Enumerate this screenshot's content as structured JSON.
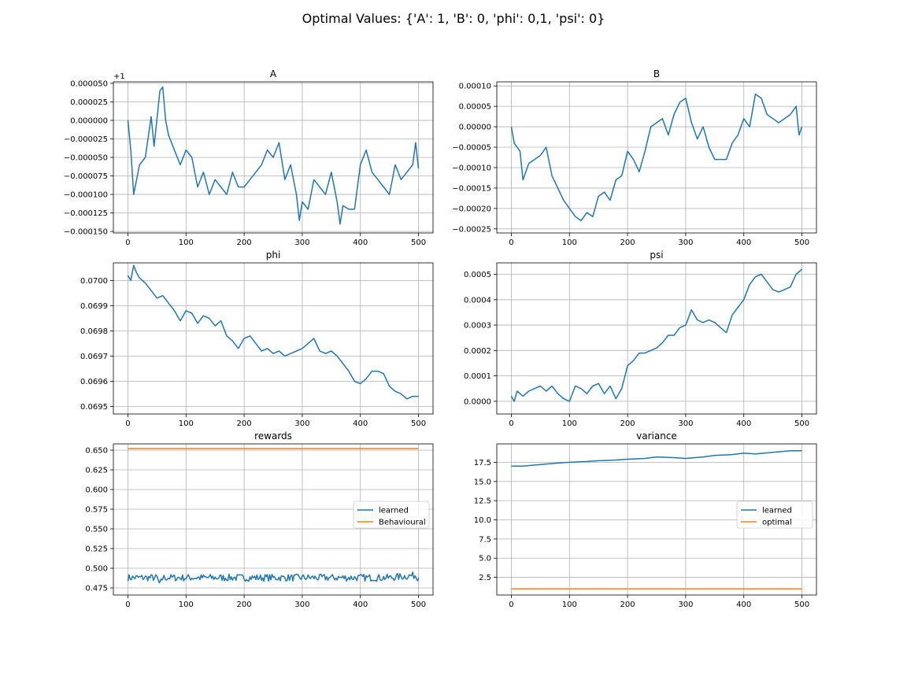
{
  "figure": {
    "suptitle": "Optimal Values: {'A': 1, 'B': 0, 'phi': 0,1, 'psi': 0}"
  },
  "colors": {
    "series1": "#1f77b4",
    "series2": "#ff7f0e",
    "grid": "#b0b0b0"
  },
  "chart_data": [
    {
      "id": "A",
      "type": "line",
      "title": "A",
      "offset_text": "+1",
      "xlim": [
        -25,
        525
      ],
      "ylim": [
        -0.000152,
        5.2e-05
      ],
      "xticks": [
        0,
        100,
        200,
        300,
        400,
        500
      ],
      "xtick_labels": [
        "0",
        "100",
        "200",
        "300",
        "400",
        "500"
      ],
      "yticks": [
        5e-05,
        2.5e-05,
        0,
        -2.5e-05,
        -5e-05,
        -7.5e-05,
        -0.0001,
        -0.000125,
        -0.00015
      ],
      "ytick_labels": [
        "0.000050",
        "0.000025",
        "0.000000",
        "−0.000025",
        "−0.000050",
        "−0.000075",
        "−0.000100",
        "−0.000125",
        "−0.000150"
      ],
      "grid": true,
      "series": [
        {
          "color": "series1",
          "x": [
            0,
            5,
            10,
            20,
            30,
            40,
            45,
            55,
            60,
            65,
            70,
            80,
            90,
            100,
            110,
            120,
            130,
            140,
            150,
            160,
            170,
            180,
            190,
            200,
            210,
            220,
            230,
            240,
            250,
            260,
            270,
            280,
            290,
            295,
            300,
            310,
            320,
            330,
            340,
            350,
            360,
            365,
            370,
            380,
            390,
            400,
            410,
            420,
            430,
            440,
            450,
            460,
            470,
            480,
            490,
            495,
            500
          ],
          "y": [
            0,
            -4e-05,
            -0.0001,
            -6e-05,
            -5e-05,
            5e-06,
            -3.5e-05,
            4e-05,
            4.5e-05,
            0.0,
            -2e-05,
            -4e-05,
            -6e-05,
            -4e-05,
            -5e-05,
            -9e-05,
            -7e-05,
            -0.0001,
            -8e-05,
            -9e-05,
            -0.0001,
            -7e-05,
            -9e-05,
            -9e-05,
            -8e-05,
            -7e-05,
            -6e-05,
            -4e-05,
            -5e-05,
            -3e-05,
            -8e-05,
            -6e-05,
            -0.0001,
            -0.000135,
            -0.00011,
            -0.00012,
            -8e-05,
            -9e-05,
            -0.0001,
            -7e-05,
            -0.00011,
            -0.00014,
            -0.000115,
            -0.00012,
            -0.00012,
            -6e-05,
            -4e-05,
            -7e-05,
            -8e-05,
            -9e-05,
            -0.0001,
            -6e-05,
            -8e-05,
            -7e-05,
            -6e-05,
            -3e-05,
            -6.5e-05
          ]
        }
      ]
    },
    {
      "id": "B",
      "type": "line",
      "title": "B",
      "xlim": [
        -25,
        525
      ],
      "ylim": [
        -0.00026,
        0.00011
      ],
      "xticks": [
        0,
        100,
        200,
        300,
        400,
        500
      ],
      "xtick_labels": [
        "0",
        "100",
        "200",
        "300",
        "400",
        "500"
      ],
      "yticks": [
        0.0001,
        5e-05,
        0,
        -5e-05,
        -0.0001,
        -0.00015,
        -0.0002,
        -0.00025
      ],
      "ytick_labels": [
        "0.00010",
        "0.00005",
        "0.00000",
        "−0.00005",
        "−0.00010",
        "−0.00015",
        "−0.00020",
        "−0.00025"
      ],
      "grid": true,
      "series": [
        {
          "color": "series1",
          "x": [
            0,
            5,
            15,
            20,
            30,
            40,
            50,
            60,
            70,
            80,
            90,
            100,
            110,
            120,
            130,
            140,
            150,
            160,
            170,
            180,
            190,
            200,
            210,
            220,
            230,
            240,
            250,
            260,
            270,
            280,
            290,
            300,
            310,
            320,
            330,
            340,
            350,
            360,
            370,
            380,
            390,
            400,
            410,
            420,
            430,
            440,
            450,
            460,
            470,
            480,
            490,
            495,
            500
          ],
          "y": [
            0,
            -4e-05,
            -6e-05,
            -0.00013,
            -9e-05,
            -8e-05,
            -7e-05,
            -5e-05,
            -0.00012,
            -0.00015,
            -0.00018,
            -0.0002,
            -0.00022,
            -0.00023,
            -0.00021,
            -0.00022,
            -0.00017,
            -0.00016,
            -0.00018,
            -0.00013,
            -0.00012,
            -6e-05,
            -8e-05,
            -0.00011,
            -6e-05,
            0.0,
            1e-05,
            2e-05,
            -2e-05,
            3e-05,
            6e-05,
            7e-05,
            1e-05,
            -3e-05,
            0.0,
            -5e-05,
            -8e-05,
            -8e-05,
            -8e-05,
            -4e-05,
            -2e-05,
            2e-05,
            0.0,
            8e-05,
            7e-05,
            3e-05,
            2e-05,
            1e-05,
            2e-05,
            3e-05,
            5e-05,
            -2e-05,
            0.0
          ]
        }
      ]
    },
    {
      "id": "phi",
      "type": "line",
      "title": "phi",
      "xlim": [
        -25,
        525
      ],
      "ylim": [
        0.06947,
        0.07007
      ],
      "xticks": [
        0,
        100,
        200,
        300,
        400,
        500
      ],
      "xtick_labels": [
        "0",
        "100",
        "200",
        "300",
        "400",
        "500"
      ],
      "yticks": [
        0.07,
        0.0699,
        0.0698,
        0.0697,
        0.0696,
        0.0695
      ],
      "ytick_labels": [
        "0.0700",
        "0.0699",
        "0.0698",
        "0.0697",
        "0.0696",
        "0.0695"
      ],
      "grid": true,
      "series": [
        {
          "color": "series1",
          "x": [
            0,
            5,
            10,
            15,
            20,
            30,
            40,
            50,
            60,
            70,
            80,
            90,
            100,
            110,
            120,
            130,
            140,
            150,
            160,
            170,
            180,
            190,
            200,
            210,
            220,
            230,
            240,
            250,
            260,
            270,
            280,
            290,
            300,
            310,
            320,
            330,
            340,
            350,
            360,
            370,
            380,
            390,
            400,
            410,
            420,
            430,
            440,
            450,
            460,
            470,
            480,
            490,
            500
          ],
          "y": [
            0.07002,
            0.07,
            0.07006,
            0.07003,
            0.07001,
            0.06999,
            0.06996,
            0.06993,
            0.06994,
            0.06991,
            0.06988,
            0.06984,
            0.06988,
            0.06987,
            0.06983,
            0.06986,
            0.06985,
            0.06982,
            0.06984,
            0.06978,
            0.06976,
            0.06973,
            0.06977,
            0.06978,
            0.06975,
            0.06972,
            0.06973,
            0.06971,
            0.06972,
            0.0697,
            0.06971,
            0.06972,
            0.06973,
            0.06975,
            0.06977,
            0.06972,
            0.06971,
            0.06972,
            0.0697,
            0.06967,
            0.06964,
            0.0696,
            0.06959,
            0.06961,
            0.06964,
            0.06964,
            0.06963,
            0.06958,
            0.06956,
            0.06955,
            0.06953,
            0.06954,
            0.06954
          ]
        }
      ]
    },
    {
      "id": "psi",
      "type": "line",
      "title": "psi",
      "xlim": [
        -25,
        525
      ],
      "ylim": [
        -5e-05,
        0.000545
      ],
      "xticks": [
        0,
        100,
        200,
        300,
        400,
        500
      ],
      "xtick_labels": [
        "0",
        "100",
        "200",
        "300",
        "400",
        "500"
      ],
      "yticks": [
        0.0005,
        0.0004,
        0.0003,
        0.0002,
        0.0001,
        0
      ],
      "ytick_labels": [
        "0.0005",
        "0.0004",
        "0.0003",
        "0.0002",
        "0.0001",
        "0.0000"
      ],
      "grid": true,
      "series": [
        {
          "color": "series1",
          "x": [
            0,
            5,
            10,
            20,
            30,
            40,
            50,
            60,
            70,
            80,
            90,
            100,
            110,
            120,
            130,
            140,
            150,
            160,
            170,
            180,
            190,
            200,
            210,
            220,
            230,
            240,
            250,
            260,
            270,
            280,
            290,
            300,
            310,
            320,
            330,
            340,
            350,
            360,
            370,
            380,
            390,
            400,
            410,
            420,
            430,
            440,
            450,
            460,
            470,
            480,
            490,
            500
          ],
          "y": [
            2e-05,
            0.0,
            4e-05,
            2e-05,
            4e-05,
            5e-05,
            6e-05,
            4e-05,
            6e-05,
            3e-05,
            1e-05,
            0.0,
            6e-05,
            5e-05,
            3e-05,
            6e-05,
            7e-05,
            3e-05,
            6e-05,
            1e-05,
            5e-05,
            0.00014,
            0.00016,
            0.00019,
            0.00019,
            0.0002,
            0.00021,
            0.00023,
            0.00026,
            0.00026,
            0.00029,
            0.0003,
            0.00036,
            0.00032,
            0.00031,
            0.00032,
            0.00031,
            0.00029,
            0.00027,
            0.00034,
            0.00037,
            0.0004,
            0.00046,
            0.00049,
            0.0005,
            0.00047,
            0.00044,
            0.00043,
            0.00044,
            0.00045,
            0.0005,
            0.00052
          ]
        }
      ]
    },
    {
      "id": "rewards",
      "type": "line",
      "title": "rewards",
      "xlim": [
        -25,
        525
      ],
      "ylim": [
        0.466,
        0.658
      ],
      "xticks": [
        0,
        100,
        200,
        300,
        400,
        500
      ],
      "xtick_labels": [
        "0",
        "100",
        "200",
        "300",
        "400",
        "500"
      ],
      "yticks": [
        0.65,
        0.625,
        0.6,
        0.575,
        0.55,
        0.525,
        0.5,
        0.475
      ],
      "ytick_labels": [
        "0.650",
        "0.625",
        "0.600",
        "0.575",
        "0.550",
        "0.525",
        "0.500",
        "0.475"
      ],
      "grid": true,
      "legend": {
        "position": "center-right",
        "entries": [
          "learned",
          "Behavioural"
        ]
      },
      "series": [
        {
          "name": "learned",
          "color": "series1",
          "noisy": true,
          "x": [
            0,
            50,
            55,
            60,
            100,
            150,
            200,
            250,
            300,
            350,
            400,
            450,
            495,
            500
          ],
          "y": [
            0.488,
            0.488,
            0.479,
            0.488,
            0.488,
            0.488,
            0.488,
            0.488,
            0.488,
            0.488,
            0.488,
            0.488,
            0.491,
            0.488
          ]
        },
        {
          "name": "Behavioural",
          "color": "series2",
          "x": [
            0,
            500
          ],
          "y": [
            0.652,
            0.652
          ]
        }
      ]
    },
    {
      "id": "variance",
      "type": "line",
      "title": "variance",
      "xlim": [
        -25,
        525
      ],
      "ylim": [
        0.2,
        19.9
      ],
      "xticks": [
        0,
        100,
        200,
        300,
        400,
        500
      ],
      "xtick_labels": [
        "0",
        "100",
        "200",
        "300",
        "400",
        "500"
      ],
      "yticks": [
        17.5,
        15.0,
        12.5,
        10.0,
        7.5,
        5.0,
        2.5
      ],
      "ytick_labels": [
        "17.5",
        "15.0",
        "12.5",
        "10.0",
        "7.5",
        "5.0",
        "2.5"
      ],
      "grid": true,
      "legend": {
        "position": "center-right",
        "entries": [
          "learned",
          "optimal"
        ]
      },
      "series": [
        {
          "name": "learned",
          "color": "series1",
          "x": [
            0,
            20,
            50,
            80,
            100,
            130,
            150,
            180,
            200,
            230,
            250,
            280,
            300,
            330,
            350,
            380,
            400,
            420,
            450,
            480,
            500
          ],
          "y": [
            17.0,
            17.0,
            17.2,
            17.4,
            17.5,
            17.6,
            17.7,
            17.8,
            17.9,
            18.0,
            18.2,
            18.1,
            18.0,
            18.2,
            18.4,
            18.5,
            18.7,
            18.6,
            18.8,
            19.0,
            19.0
          ]
        },
        {
          "name": "optimal",
          "color": "series2",
          "x": [
            0,
            500
          ],
          "y": [
            1.0,
            1.0
          ]
        }
      ]
    }
  ]
}
